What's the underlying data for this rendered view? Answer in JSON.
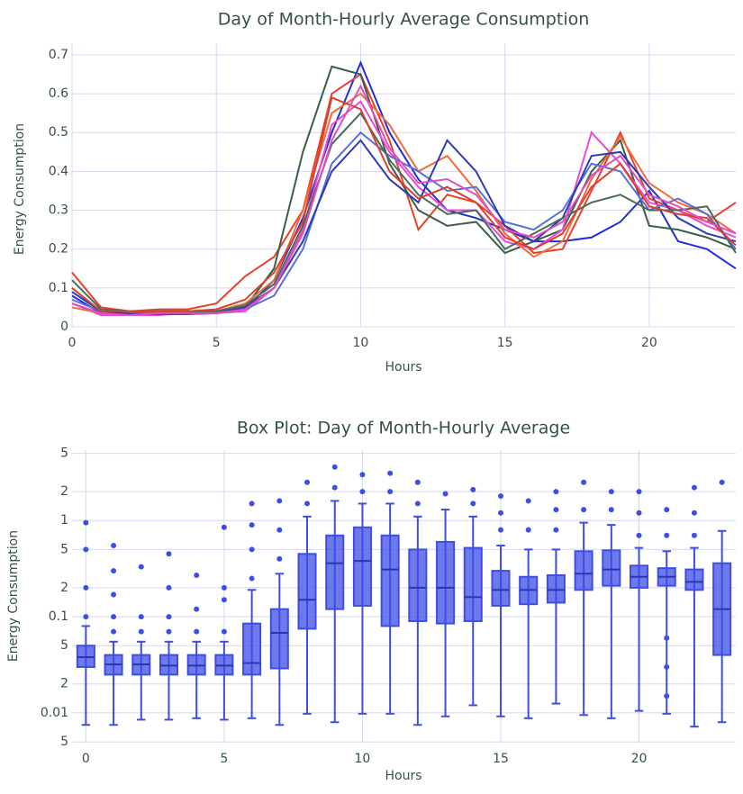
{
  "chart_data": [
    {
      "type": "line",
      "title": "Day of Month-Hourly Average Consumption",
      "x_label": "Hours",
      "y_label": "Energy Consumption",
      "x": [
        0,
        1,
        2,
        3,
        4,
        5,
        6,
        7,
        8,
        9,
        10,
        11,
        12,
        13,
        14,
        15,
        16,
        17,
        18,
        19,
        20,
        21,
        22,
        23
      ],
      "xlim": [
        0,
        23
      ],
      "xticks": [
        0,
        5,
        10,
        15,
        20
      ],
      "ylim": [
        0,
        0.73
      ],
      "yticks": [
        0,
        0.1,
        0.2,
        0.3,
        0.4,
        0.5,
        0.6,
        0.7
      ],
      "grid": true,
      "series": [
        {
          "color": "#1f2fd6",
          "values": [
            0.08,
            0.035,
            0.03,
            0.032,
            0.033,
            0.035,
            0.045,
            0.12,
            0.28,
            0.5,
            0.68,
            0.5,
            0.38,
            0.3,
            0.28,
            0.25,
            0.22,
            0.22,
            0.23,
            0.27,
            0.35,
            0.22,
            0.2,
            0.15
          ]
        },
        {
          "color": "#e8412a",
          "values": [
            0.14,
            0.05,
            0.04,
            0.045,
            0.045,
            0.06,
            0.13,
            0.18,
            0.3,
            0.6,
            0.65,
            0.48,
            0.25,
            0.34,
            0.32,
            0.26,
            0.19,
            0.2,
            0.35,
            0.5,
            0.33,
            0.3,
            0.27,
            0.32
          ]
        },
        {
          "color": "#3b5e48",
          "values": [
            0.1,
            0.04,
            0.035,
            0.035,
            0.035,
            0.04,
            0.05,
            0.15,
            0.45,
            0.67,
            0.65,
            0.42,
            0.3,
            0.26,
            0.27,
            0.19,
            0.22,
            0.25,
            0.4,
            0.48,
            0.26,
            0.25,
            0.23,
            0.2
          ]
        },
        {
          "color": "#e84ad8",
          "values": [
            0.06,
            0.03,
            0.03,
            0.03,
            0.035,
            0.035,
            0.04,
            0.1,
            0.25,
            0.52,
            0.58,
            0.45,
            0.36,
            0.3,
            0.3,
            0.22,
            0.2,
            0.25,
            0.5,
            0.42,
            0.32,
            0.3,
            0.26,
            0.23
          ]
        },
        {
          "color": "#f26b3a",
          "values": [
            0.05,
            0.035,
            0.035,
            0.04,
            0.04,
            0.04,
            0.06,
            0.12,
            0.3,
            0.55,
            0.6,
            0.52,
            0.4,
            0.44,
            0.35,
            0.24,
            0.18,
            0.22,
            0.38,
            0.49,
            0.37,
            0.32,
            0.29,
            0.24
          ]
        },
        {
          "color": "#5a6fd8",
          "values": [
            0.07,
            0.04,
            0.035,
            0.035,
            0.035,
            0.035,
            0.045,
            0.08,
            0.2,
            0.42,
            0.5,
            0.44,
            0.4,
            0.35,
            0.36,
            0.27,
            0.25,
            0.3,
            0.42,
            0.4,
            0.3,
            0.33,
            0.29,
            0.2
          ]
        },
        {
          "color": "#2a3bb5",
          "values": [
            0.09,
            0.04,
            0.033,
            0.033,
            0.033,
            0.035,
            0.05,
            0.1,
            0.22,
            0.4,
            0.48,
            0.38,
            0.32,
            0.48,
            0.4,
            0.26,
            0.22,
            0.28,
            0.44,
            0.45,
            0.36,
            0.28,
            0.24,
            0.22
          ]
        },
        {
          "color": "#4a6b58",
          "values": [
            0.12,
            0.045,
            0.04,
            0.04,
            0.04,
            0.04,
            0.055,
            0.11,
            0.26,
            0.47,
            0.55,
            0.43,
            0.34,
            0.29,
            0.3,
            0.2,
            0.24,
            0.28,
            0.32,
            0.34,
            0.3,
            0.3,
            0.31,
            0.19
          ]
        },
        {
          "color": "#d9402e",
          "values": [
            0.1,
            0.04,
            0.04,
            0.04,
            0.04,
            0.045,
            0.07,
            0.14,
            0.27,
            0.59,
            0.56,
            0.4,
            0.33,
            0.36,
            0.32,
            0.23,
            0.2,
            0.24,
            0.36,
            0.42,
            0.31,
            0.29,
            0.28,
            0.21
          ]
        },
        {
          "color": "#e04fbf",
          "values": [
            0.06,
            0.035,
            0.03,
            0.035,
            0.035,
            0.035,
            0.045,
            0.1,
            0.24,
            0.48,
            0.62,
            0.46,
            0.37,
            0.38,
            0.34,
            0.25,
            0.23,
            0.27,
            0.39,
            0.44,
            0.34,
            0.31,
            0.27,
            0.24
          ]
        }
      ]
    },
    {
      "type": "box",
      "title": "Box Plot: Day of Month-Hourly Average",
      "x_label": "Hours",
      "y_label": "Energy Consumption",
      "x": [
        0,
        1,
        2,
        3,
        4,
        5,
        6,
        7,
        8,
        9,
        10,
        11,
        12,
        13,
        14,
        15,
        16,
        17,
        18,
        19,
        20,
        21,
        22,
        23
      ],
      "xlim": [
        -0.5,
        23.5
      ],
      "xticks": [
        0,
        5,
        10,
        15,
        20
      ],
      "log_y": true,
      "ylim": [
        0.0049,
        5.4
      ],
      "yticks": [
        {
          "value": 0.005,
          "label": "5"
        },
        0.01,
        {
          "value": 0.02,
          "label": "2"
        },
        {
          "value": 0.05,
          "label": "5"
        },
        0.1,
        {
          "value": 0.2,
          "label": "2"
        },
        {
          "value": 0.5,
          "label": "5"
        },
        1,
        2,
        5
      ],
      "grid": true,
      "color": "#3d4ee6",
      "boxes": [
        {
          "low": 0.0075,
          "q1": 0.03,
          "median": 0.038,
          "q3": 0.05,
          "high": 0.08,
          "outliers": [
            0.1,
            0.2,
            0.5,
            0.95
          ]
        },
        {
          "low": 0.0075,
          "q1": 0.025,
          "median": 0.032,
          "q3": 0.04,
          "high": 0.055,
          "outliers": [
            0.07,
            0.1,
            0.17,
            0.3,
            0.55
          ]
        },
        {
          "low": 0.0085,
          "q1": 0.025,
          "median": 0.032,
          "q3": 0.04,
          "high": 0.055,
          "outliers": [
            0.07,
            0.1,
            0.33
          ]
        },
        {
          "low": 0.0085,
          "q1": 0.025,
          "median": 0.031,
          "q3": 0.04,
          "high": 0.055,
          "outliers": [
            0.07,
            0.1,
            0.2,
            0.45
          ]
        },
        {
          "low": 0.0088,
          "q1": 0.025,
          "median": 0.031,
          "q3": 0.04,
          "high": 0.055,
          "outliers": [
            0.07,
            0.12,
            0.27
          ]
        },
        {
          "low": 0.0085,
          "q1": 0.025,
          "median": 0.031,
          "q3": 0.04,
          "high": 0.055,
          "outliers": [
            0.07,
            0.15,
            0.2,
            0.85
          ]
        },
        {
          "low": 0.0088,
          "q1": 0.025,
          "median": 0.033,
          "q3": 0.085,
          "high": 0.19,
          "outliers": [
            0.25,
            0.5,
            0.9,
            1.5
          ]
        },
        {
          "low": 0.0075,
          "q1": 0.029,
          "median": 0.068,
          "q3": 0.12,
          "high": 0.28,
          "outliers": [
            0.4,
            0.8,
            1.6
          ]
        },
        {
          "low": 0.0098,
          "q1": 0.075,
          "median": 0.15,
          "q3": 0.45,
          "high": 1.1,
          "outliers": [
            1.5,
            2.5
          ]
        },
        {
          "low": 0.008,
          "q1": 0.12,
          "median": 0.36,
          "q3": 0.7,
          "high": 1.6,
          "outliers": [
            2.2,
            3.6
          ]
        },
        {
          "low": 0.0098,
          "q1": 0.13,
          "median": 0.38,
          "q3": 0.85,
          "high": 1.5,
          "outliers": [
            2,
            3
          ]
        },
        {
          "low": 0.0098,
          "q1": 0.08,
          "median": 0.31,
          "q3": 0.7,
          "high": 1.5,
          "outliers": [
            2,
            3.1
          ]
        },
        {
          "low": 0.0075,
          "q1": 0.09,
          "median": 0.2,
          "q3": 0.5,
          "high": 1.1,
          "outliers": [
            1.5,
            2.5
          ]
        },
        {
          "low": 0.0092,
          "q1": 0.085,
          "median": 0.2,
          "q3": 0.6,
          "high": 1.3,
          "outliers": [
            1.9
          ]
        },
        {
          "low": 0.012,
          "q1": 0.09,
          "median": 0.16,
          "q3": 0.52,
          "high": 1.1,
          "outliers": [
            1.5,
            2.1
          ]
        },
        {
          "low": 0.0092,
          "q1": 0.13,
          "median": 0.19,
          "q3": 0.3,
          "high": 0.55,
          "outliers": [
            0.8,
            1.2,
            1.8
          ]
        },
        {
          "low": 0.0088,
          "q1": 0.135,
          "median": 0.19,
          "q3": 0.26,
          "high": 0.5,
          "outliers": [
            0.8,
            1.6
          ]
        },
        {
          "low": 0.0125,
          "q1": 0.14,
          "median": 0.19,
          "q3": 0.27,
          "high": 0.5,
          "outliers": [
            0.8,
            1.3,
            2
          ]
        },
        {
          "low": 0.0095,
          "q1": 0.19,
          "median": 0.28,
          "q3": 0.48,
          "high": 0.95,
          "outliers": [
            1.3,
            2.5
          ]
        },
        {
          "low": 0.0088,
          "q1": 0.21,
          "median": 0.31,
          "q3": 0.49,
          "high": 0.9,
          "outliers": [
            1.3,
            2
          ]
        },
        {
          "low": 0.0105,
          "q1": 0.2,
          "median": 0.26,
          "q3": 0.34,
          "high": 0.52,
          "outliers": [
            0.7,
            1.2,
            2
          ]
        },
        {
          "low": 0.0098,
          "q1": 0.21,
          "median": 0.26,
          "q3": 0.32,
          "high": 0.48,
          "outliers": [
            0.015,
            0.03,
            0.06,
            0.7,
            1.3
          ]
        },
        {
          "low": 0.0072,
          "q1": 0.19,
          "median": 0.23,
          "q3": 0.31,
          "high": 0.52,
          "outliers": [
            0.7,
            1.2,
            2.2
          ]
        },
        {
          "low": 0.008,
          "q1": 0.04,
          "median": 0.12,
          "q3": 0.36,
          "high": 0.78,
          "outliers": [
            2.5
          ]
        }
      ]
    }
  ]
}
